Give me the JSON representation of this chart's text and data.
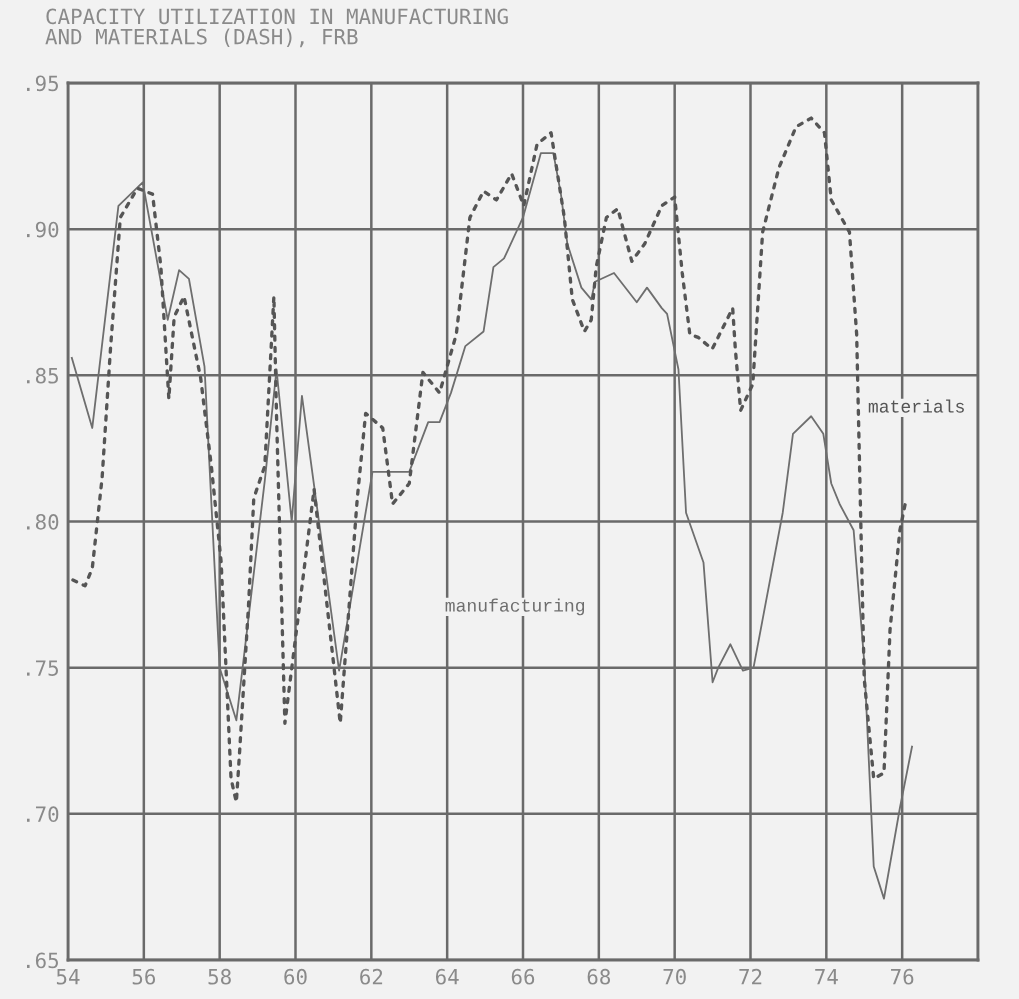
{
  "chart_data": {
    "type": "line",
    "title": "CAPACITY UTILIZATION IN MANUFACTURING\nAND MATERIALS (DASH), FRB",
    "xlim": [
      54,
      78
    ],
    "xticks": [
      54,
      56,
      58,
      60,
      62,
      64,
      66,
      68,
      70,
      72,
      74,
      76,
      {
        "value": 78,
        "label": null
      }
    ],
    "ylim": [
      0.65,
      0.95
    ],
    "yticks": [
      {
        "value": 0.65,
        "label": ".65"
      },
      {
        "value": 0.7,
        "label": ".70"
      },
      {
        "value": 0.75,
        "label": ".75"
      },
      {
        "value": 0.8,
        "label": ".80"
      },
      {
        "value": 0.85,
        "label": ".85"
      },
      {
        "value": 0.9,
        "label": ".90"
      },
      {
        "value": 0.95,
        "label": ".95"
      }
    ],
    "grid": true,
    "legend": false,
    "marker": "none",
    "series": [
      {
        "name": "manufacturing",
        "color": "#6e6e6e",
        "line_style": "solid",
        "x": [
          54.1,
          54.64,
          55.33,
          55.97,
          56.63,
          56.93,
          57.19,
          57.6,
          58.0,
          58.44,
          59.19,
          59.5,
          59.9,
          60.17,
          61.15,
          62.03,
          63.0,
          63.5,
          63.8,
          64.1,
          64.48,
          64.96,
          65.22,
          65.5,
          66.0,
          66.47,
          66.8,
          67.0,
          67.17,
          67.54,
          67.8,
          67.9,
          68.4,
          69.0,
          69.27,
          69.66,
          69.8,
          70.1,
          70.3,
          70.76,
          71.0,
          71.15,
          71.47,
          71.8,
          72.08,
          72.85,
          73.12,
          73.6,
          73.92,
          74.13,
          74.35,
          74.72,
          75.0,
          75.25,
          75.52,
          75.94,
          76.26
        ],
        "values": [
          0.856,
          0.832,
          0.908,
          0.916,
          0.869,
          0.886,
          0.883,
          0.853,
          0.75,
          0.732,
          0.814,
          0.852,
          0.8,
          0.843,
          0.749,
          0.817,
          0.817,
          0.834,
          0.834,
          0.844,
          0.86,
          0.865,
          0.887,
          0.89,
          0.904,
          0.926,
          0.926,
          0.912,
          0.895,
          0.88,
          0.876,
          0.882,
          0.885,
          0.875,
          0.88,
          0.873,
          0.871,
          0.852,
          0.803,
          0.786,
          0.745,
          0.75,
          0.758,
          0.749,
          0.75,
          0.803,
          0.83,
          0.836,
          0.83,
          0.813,
          0.806,
          0.797,
          0.752,
          0.682,
          0.671,
          0.702,
          0.723
        ]
      },
      {
        "name": "materials",
        "color": "#555555",
        "line_style": "dotted",
        "x": [
          54.13,
          54.45,
          54.64,
          54.8,
          54.9,
          55.12,
          55.38,
          55.83,
          56.23,
          56.45,
          56.66,
          56.8,
          57.06,
          57.5,
          57.78,
          58.04,
          58.3,
          58.44,
          58.52,
          58.76,
          58.9,
          59.19,
          59.43,
          59.5,
          59.64,
          59.72,
          60.49,
          61.18,
          61.63,
          61.85,
          62.3,
          62.56,
          63.0,
          63.36,
          63.8,
          64.24,
          64.6,
          64.96,
          65.3,
          65.7,
          66.02,
          66.37,
          66.74,
          67.09,
          67.3,
          67.62,
          67.8,
          67.93,
          68.2,
          68.5,
          68.87,
          69.21,
          69.66,
          70.0,
          70.2,
          70.4,
          70.62,
          70.99,
          71.26,
          71.53,
          71.6,
          71.74,
          72.06,
          72.32,
          72.75,
          73.2,
          73.6,
          73.95,
          74.13,
          74.61,
          74.8,
          75.0,
          75.25,
          75.52,
          75.68,
          75.94,
          76.08
        ],
        "values": [
          0.78,
          0.778,
          0.784,
          0.803,
          0.815,
          0.859,
          0.904,
          0.914,
          0.912,
          0.887,
          0.842,
          0.87,
          0.877,
          0.849,
          0.819,
          0.786,
          0.712,
          0.704,
          0.72,
          0.771,
          0.808,
          0.819,
          0.877,
          0.836,
          0.769,
          0.731,
          0.811,
          0.731,
          0.808,
          0.837,
          0.832,
          0.806,
          0.813,
          0.851,
          0.844,
          0.864,
          0.904,
          0.913,
          0.91,
          0.919,
          0.908,
          0.929,
          0.933,
          0.904,
          0.876,
          0.865,
          0.869,
          0.887,
          0.904,
          0.907,
          0.889,
          0.895,
          0.908,
          0.911,
          0.885,
          0.864,
          0.863,
          0.859,
          0.866,
          0.873,
          0.859,
          0.838,
          0.847,
          0.899,
          0.921,
          0.935,
          0.938,
          0.933,
          0.91,
          0.899,
          0.864,
          0.746,
          0.712,
          0.714,
          0.763,
          0.797,
          0.806
        ]
      }
    ]
  }
}
